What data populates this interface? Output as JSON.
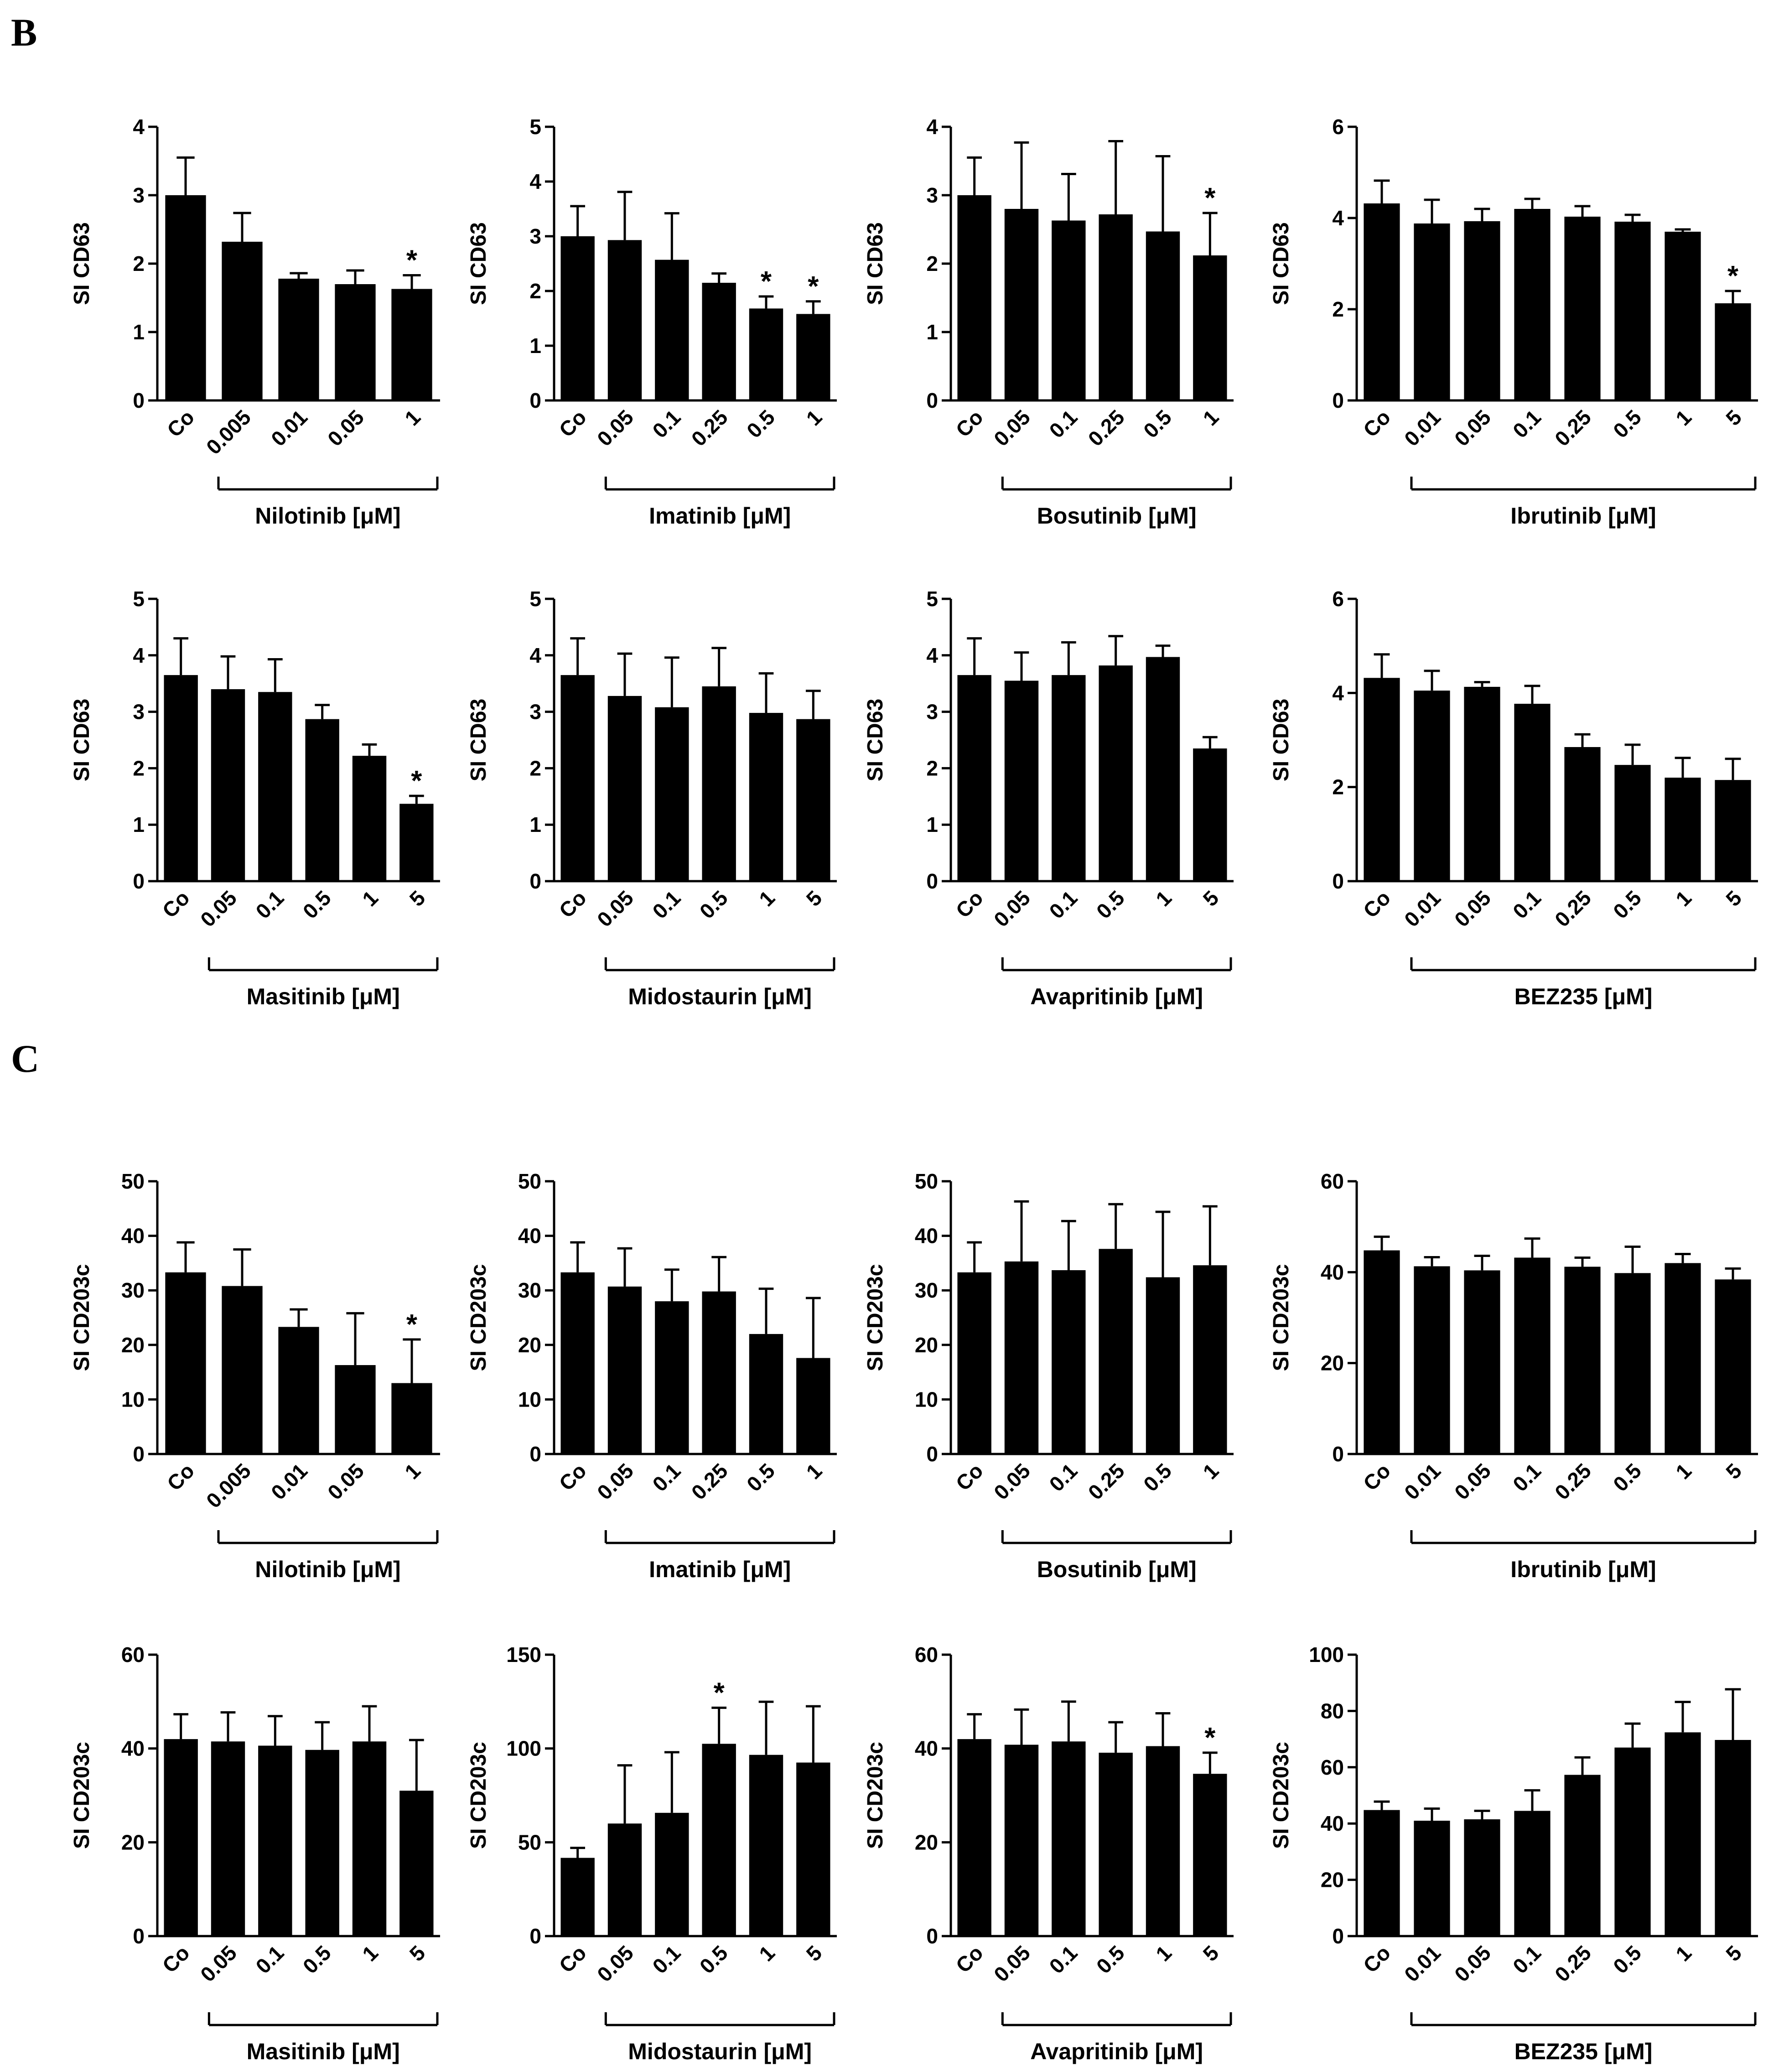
{
  "panels": [
    {
      "letter": "B"
    },
    {
      "letter": "C"
    }
  ],
  "chart_data": [
    {
      "type": "bar",
      "panel": "B",
      "title": "",
      "ylabel": "SI CD63",
      "xlabel": "Nilotinib [μM]",
      "categories": [
        "Co",
        "0.005",
        "0.01",
        "0.05",
        "1"
      ],
      "values": [
        3.0,
        2.32,
        1.78,
        1.7,
        1.63
      ],
      "errors": [
        0.55,
        0.42,
        0.08,
        0.2,
        0.2
      ],
      "significant": [
        false,
        false,
        false,
        false,
        true
      ],
      "ylim": [
        0,
        4
      ],
      "yticks": [
        "0",
        "1",
        "2",
        "3",
        "4"
      ]
    },
    {
      "type": "bar",
      "panel": "B",
      "title": "",
      "ylabel": "SI CD63",
      "xlabel": "Imatinib [μM]",
      "categories": [
        "Co",
        "0.05",
        "0.1",
        "0.25",
        "0.5",
        "1"
      ],
      "values": [
        3.0,
        2.93,
        2.57,
        2.15,
        1.68,
        1.58
      ],
      "errors": [
        0.55,
        0.88,
        0.85,
        0.17,
        0.22,
        0.23
      ],
      "significant": [
        false,
        false,
        false,
        false,
        true,
        true
      ],
      "ylim": [
        0,
        5
      ],
      "yticks": [
        "0",
        "1",
        "2",
        "3",
        "4",
        "5"
      ]
    },
    {
      "type": "bar",
      "panel": "B",
      "title": "",
      "ylabel": "SI CD63",
      "xlabel": "Bosutinib [μM]",
      "categories": [
        "Co",
        "0.05",
        "0.1",
        "0.25",
        "0.5",
        "1"
      ],
      "values": [
        3.0,
        2.8,
        2.63,
        2.72,
        2.47,
        2.12
      ],
      "errors": [
        0.55,
        0.97,
        0.68,
        1.07,
        1.1,
        0.62
      ],
      "significant": [
        false,
        false,
        false,
        false,
        false,
        true
      ],
      "ylim": [
        0,
        4
      ],
      "yticks": [
        "0",
        "1",
        "2",
        "3",
        "4"
      ]
    },
    {
      "type": "bar",
      "panel": "B",
      "title": "",
      "ylabel": "SI CD63",
      "xlabel": "Ibrutinib [μM]",
      "categories": [
        "Co",
        "0.01",
        "0.05",
        "0.1",
        "0.25",
        "0.5",
        "1",
        "5"
      ],
      "values": [
        4.32,
        3.88,
        3.93,
        4.2,
        4.03,
        3.92,
        3.7,
        2.13
      ],
      "errors": [
        0.5,
        0.52,
        0.27,
        0.22,
        0.23,
        0.15,
        0.05,
        0.27
      ],
      "significant": [
        false,
        false,
        false,
        false,
        false,
        false,
        false,
        true
      ],
      "ylim": [
        0,
        6
      ],
      "yticks": [
        "0",
        "2",
        "4",
        "6"
      ]
    },
    {
      "type": "bar",
      "panel": "B",
      "title": "",
      "ylabel": "SI CD63",
      "xlabel": "Masitinib [μM]",
      "categories": [
        "Co",
        "0.05",
        "0.1",
        "0.5",
        "1",
        "5"
      ],
      "values": [
        3.65,
        3.4,
        3.35,
        2.87,
        2.22,
        1.37
      ],
      "errors": [
        0.65,
        0.58,
        0.58,
        0.25,
        0.2,
        0.14
      ],
      "significant": [
        false,
        false,
        false,
        false,
        false,
        true
      ],
      "ylim": [
        0,
        5
      ],
      "yticks": [
        "0",
        "1",
        "2",
        "3",
        "4",
        "5"
      ]
    },
    {
      "type": "bar",
      "panel": "B",
      "title": "",
      "ylabel": "SI CD63",
      "xlabel": "Midostaurin [μM]",
      "categories": [
        "Co",
        "0.05",
        "0.1",
        "0.5",
        "1",
        "5"
      ],
      "values": [
        3.65,
        3.28,
        3.08,
        3.45,
        2.98,
        2.87
      ],
      "errors": [
        0.65,
        0.75,
        0.88,
        0.68,
        0.7,
        0.5
      ],
      "significant": [
        false,
        false,
        false,
        false,
        false,
        false
      ],
      "ylim": [
        0,
        5
      ],
      "yticks": [
        "0",
        "1",
        "2",
        "3",
        "4",
        "5"
      ]
    },
    {
      "type": "bar",
      "panel": "B",
      "title": "",
      "ylabel": "SI CD63",
      "xlabel": "Avapritinib [μM]",
      "categories": [
        "Co",
        "0.05",
        "0.1",
        "0.5",
        "1",
        "5"
      ],
      "values": [
        3.65,
        3.55,
        3.65,
        3.82,
        3.97,
        2.35
      ],
      "errors": [
        0.65,
        0.5,
        0.58,
        0.52,
        0.2,
        0.2
      ],
      "significant": [
        false,
        false,
        false,
        false,
        false,
        false
      ],
      "ylim": [
        0,
        5
      ],
      "yticks": [
        "0",
        "1",
        "2",
        "3",
        "4",
        "5"
      ]
    },
    {
      "type": "bar",
      "panel": "B",
      "title": "",
      "ylabel": "SI CD63",
      "xlabel": "BEZ235 [μM]",
      "categories": [
        "Co",
        "0.01",
        "0.05",
        "0.1",
        "0.25",
        "0.5",
        "1",
        "5"
      ],
      "values": [
        4.32,
        4.05,
        4.13,
        3.77,
        2.85,
        2.47,
        2.2,
        2.15
      ],
      "errors": [
        0.5,
        0.42,
        0.1,
        0.38,
        0.27,
        0.43,
        0.42,
        0.45
      ],
      "significant": [
        false,
        false,
        false,
        false,
        false,
        false,
        false,
        false
      ],
      "ylim": [
        0,
        6
      ],
      "yticks": [
        "0",
        "2",
        "4",
        "6"
      ]
    },
    {
      "type": "bar",
      "panel": "C",
      "title": "",
      "ylabel": "SI CD203c",
      "xlabel": "Nilotinib [μM]",
      "categories": [
        "Co",
        "0.005",
        "0.01",
        "0.05",
        "1"
      ],
      "values": [
        33.3,
        30.8,
        23.3,
        16.3,
        13.0
      ],
      "errors": [
        5.5,
        6.7,
        3.2,
        9.5,
        8.0
      ],
      "significant": [
        false,
        false,
        false,
        false,
        true
      ],
      "ylim": [
        0,
        50
      ],
      "yticks": [
        "0",
        "10",
        "20",
        "30",
        "40",
        "50"
      ]
    },
    {
      "type": "bar",
      "panel": "C",
      "title": "",
      "ylabel": "SI CD203c",
      "xlabel": "Imatinib [μM]",
      "categories": [
        "Co",
        "0.05",
        "0.1",
        "0.25",
        "0.5",
        "1"
      ],
      "values": [
        33.3,
        30.7,
        28.0,
        29.8,
        22.0,
        17.6
      ],
      "errors": [
        5.5,
        7.0,
        5.8,
        6.3,
        8.3,
        11.0
      ],
      "significant": [
        false,
        false,
        false,
        false,
        false,
        false
      ],
      "ylim": [
        0,
        50
      ],
      "yticks": [
        "0",
        "10",
        "20",
        "30",
        "40",
        "50"
      ]
    },
    {
      "type": "bar",
      "panel": "C",
      "title": "",
      "ylabel": "SI CD203c",
      "xlabel": "Bosutinib [μM]",
      "categories": [
        "Co",
        "0.05",
        "0.1",
        "0.25",
        "0.5",
        "1"
      ],
      "values": [
        33.3,
        35.3,
        33.7,
        37.6,
        32.4,
        34.6
      ],
      "errors": [
        5.5,
        11.0,
        9.0,
        8.2,
        12.0,
        10.8
      ],
      "significant": [
        false,
        false,
        false,
        false,
        false,
        false
      ],
      "ylim": [
        0,
        50
      ],
      "yticks": [
        "0",
        "10",
        "20",
        "30",
        "40",
        "50"
      ]
    },
    {
      "type": "bar",
      "panel": "C",
      "title": "",
      "ylabel": "SI CD203c",
      "xlabel": "Ibrutinib [μM]",
      "categories": [
        "Co",
        "0.01",
        "0.05",
        "0.1",
        "0.25",
        "0.5",
        "1",
        "5"
      ],
      "values": [
        44.8,
        41.3,
        40.4,
        43.2,
        41.2,
        39.8,
        42.0,
        38.4
      ],
      "errors": [
        3.0,
        2.0,
        3.2,
        4.2,
        2.0,
        5.8,
        2.0,
        2.4
      ],
      "significant": [
        false,
        false,
        false,
        false,
        false,
        false,
        false,
        false
      ],
      "ylim": [
        0,
        60
      ],
      "yticks": [
        "0",
        "20",
        "40",
        "60"
      ]
    },
    {
      "type": "bar",
      "panel": "C",
      "title": "",
      "ylabel": "SI CD203c",
      "xlabel": "Masitinib [μM]",
      "categories": [
        "Co",
        "0.05",
        "0.1",
        "0.5",
        "1",
        "5"
      ],
      "values": [
        42.0,
        41.5,
        40.6,
        39.7,
        41.5,
        31.0
      ],
      "errors": [
        5.3,
        6.2,
        6.3,
        5.9,
        7.5,
        10.8
      ],
      "significant": [
        false,
        false,
        false,
        false,
        false,
        false
      ],
      "ylim": [
        0,
        60
      ],
      "yticks": [
        "0",
        "20",
        "40",
        "60"
      ]
    },
    {
      "type": "bar",
      "panel": "C",
      "title": "",
      "ylabel": "SI CD203c",
      "xlabel": "Midostaurin [μM]",
      "categories": [
        "Co",
        "0.05",
        "0.1",
        "0.5",
        "1",
        "5"
      ],
      "values": [
        41.7,
        60.0,
        65.7,
        102.5,
        96.6,
        92.5
      ],
      "errors": [
        5.3,
        31.0,
        32.3,
        19.2,
        28.3,
        30.0
      ],
      "significant": [
        false,
        false,
        false,
        true,
        false,
        false
      ],
      "ylim": [
        0,
        150
      ],
      "yticks": [
        "0",
        "50",
        "100",
        "150"
      ]
    },
    {
      "type": "bar",
      "panel": "C",
      "title": "",
      "ylabel": "SI CD203c",
      "xlabel": "Avapritinib [μM]",
      "categories": [
        "Co",
        "0.05",
        "0.1",
        "0.5",
        "1",
        "5"
      ],
      "values": [
        42.0,
        40.8,
        41.5,
        39.1,
        40.5,
        34.6
      ],
      "errors": [
        5.3,
        7.5,
        8.5,
        6.5,
        7.0,
        4.5
      ],
      "significant": [
        false,
        false,
        false,
        false,
        false,
        true
      ],
      "ylim": [
        0,
        60
      ],
      "yticks": [
        "0",
        "20",
        "40",
        "60"
      ]
    },
    {
      "type": "bar",
      "panel": "C",
      "title": "",
      "ylabel": "SI CD203c",
      "xlabel": "BEZ235 [μM]",
      "categories": [
        "Co",
        "0.01",
        "0.05",
        "0.1",
        "0.25",
        "0.5",
        "1",
        "5"
      ],
      "values": [
        44.8,
        41.0,
        41.5,
        44.5,
        57.3,
        67.0,
        72.4,
        69.7
      ],
      "errors": [
        3.0,
        4.3,
        3.0,
        7.3,
        6.2,
        8.5,
        10.8,
        18.0
      ],
      "significant": [
        false,
        false,
        false,
        false,
        false,
        false,
        false,
        false
      ],
      "ylim": [
        0,
        100
      ],
      "yticks": [
        "0",
        "20",
        "40",
        "60",
        "80",
        "100"
      ]
    }
  ]
}
